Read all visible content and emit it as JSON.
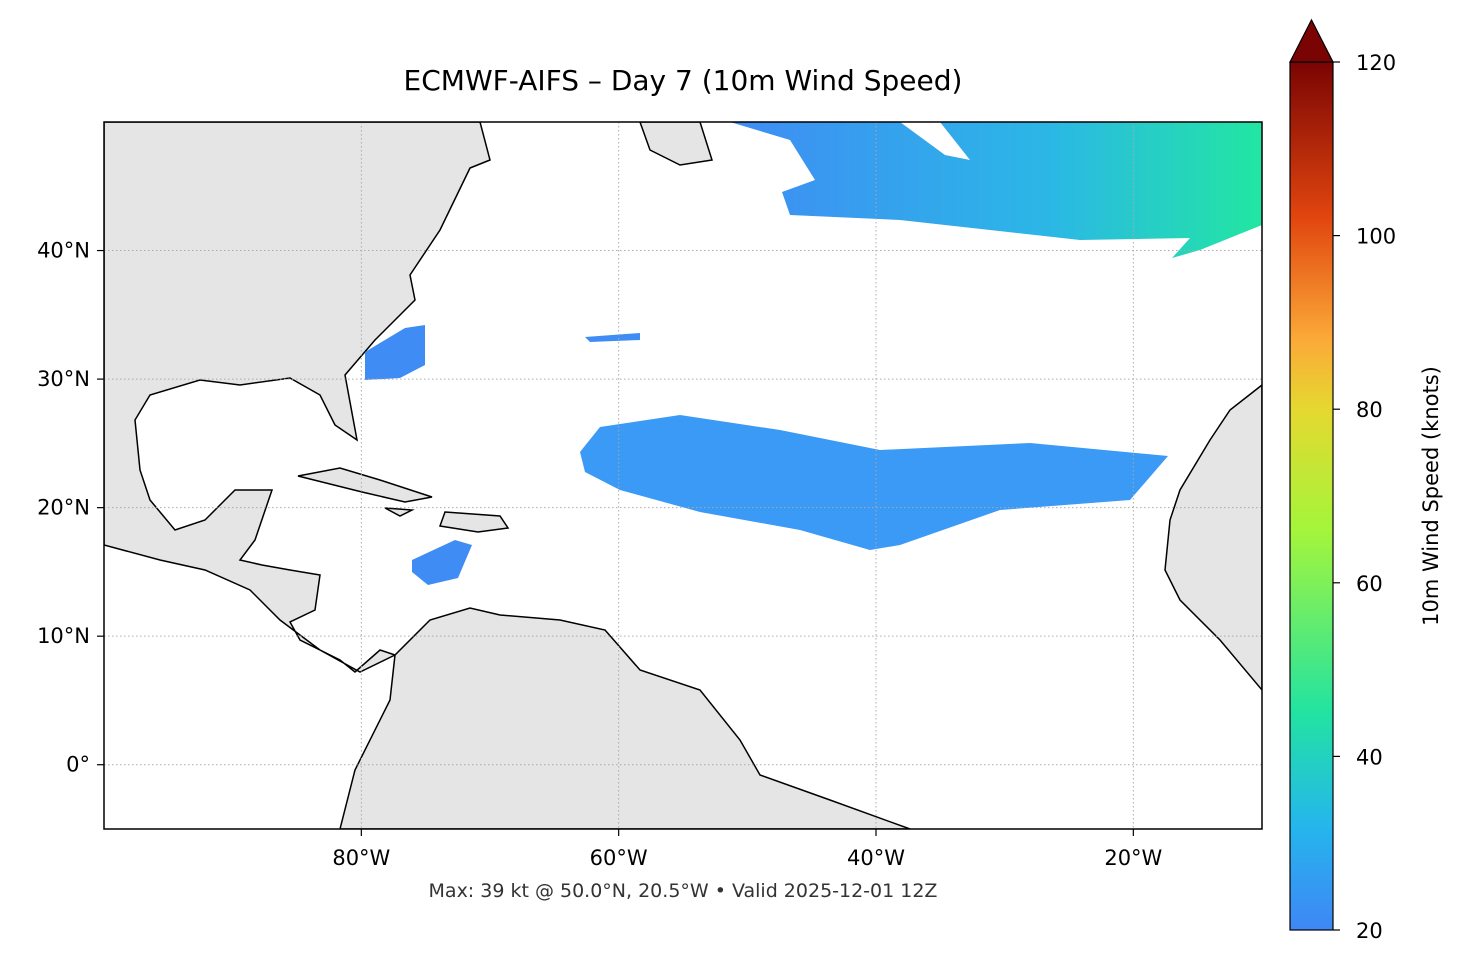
{
  "map": {
    "title": "ECMWF-AIFS – Day 7 (10m Wind Speed)",
    "footer": "Max: 39 kt @ 50.0°N, 20.5°W • Valid 2025-12-01 12Z",
    "xlim": [
      -100,
      -10
    ],
    "ylim": [
      -5,
      50
    ],
    "xticks": [
      {
        "value": -80,
        "label": "80°W"
      },
      {
        "value": -60,
        "label": "60°W"
      },
      {
        "value": -40,
        "label": "40°W"
      },
      {
        "value": -20,
        "label": "20°W"
      }
    ],
    "yticks": [
      {
        "value": 0,
        "label": "0°"
      },
      {
        "value": 10,
        "label": "10°N"
      },
      {
        "value": 20,
        "label": "20°N"
      },
      {
        "value": 30,
        "label": "30°N"
      },
      {
        "value": 40,
        "label": "40°N"
      }
    ],
    "grid": true,
    "colorbar": {
      "label": "10m Wind Speed (knots)",
      "lim": [
        20,
        120
      ],
      "ticks": [
        20,
        40,
        60,
        80,
        100,
        120
      ]
    }
  }
}
